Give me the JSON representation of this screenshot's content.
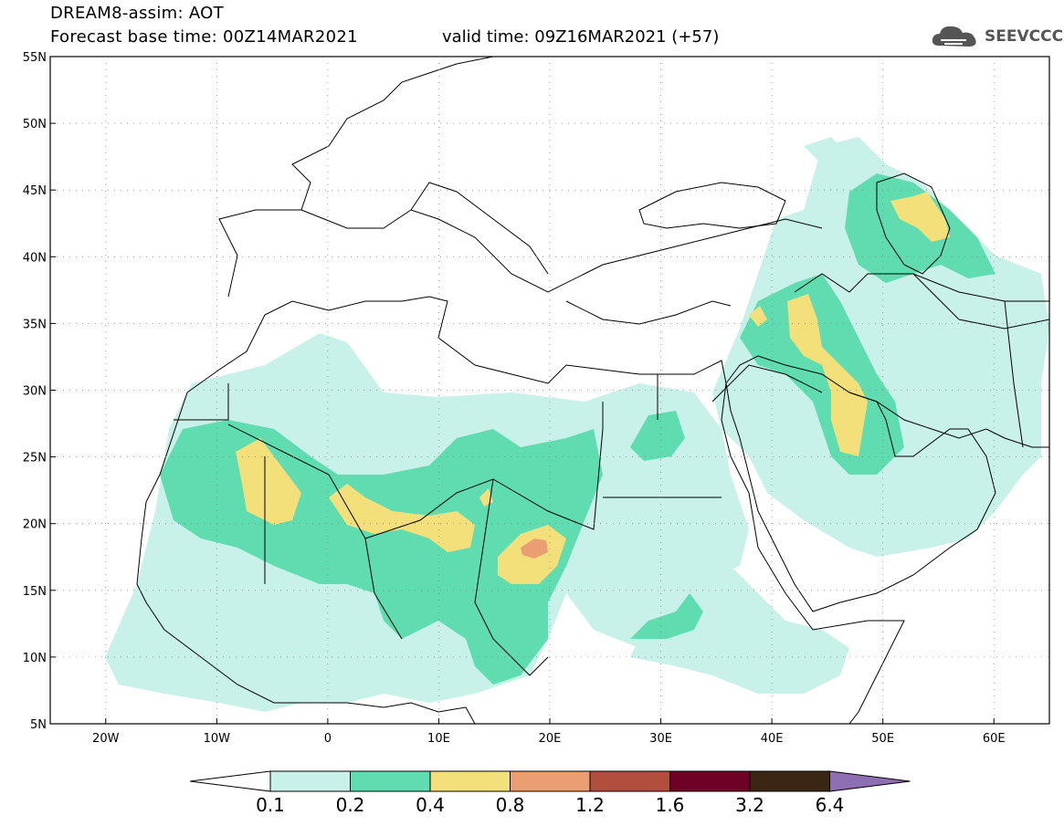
{
  "header": {
    "line1": "DREAM8-assim: AOT",
    "line2": "Forecast base time: 00Z14MAR2021",
    "valid": "valid time: 09Z16MAR2021 (+57)"
  },
  "logo": {
    "text": "SEEVCCC",
    "icon": "cloud-icon"
  },
  "map": {
    "variable": "AOT",
    "lat_labels": [
      "55N",
      "50N",
      "45N",
      "40N",
      "35N",
      "30N",
      "25N",
      "20N",
      "15N",
      "10N",
      "5N"
    ],
    "lon_labels": [
      "20W",
      "10W",
      "0",
      "10E",
      "20E",
      "30E",
      "40E",
      "50E",
      "60E"
    ],
    "extent": {
      "lon": [
        -25,
        65
      ],
      "lat": [
        5,
        55
      ]
    }
  },
  "colorbar": {
    "labels": [
      "0.1",
      "0.2",
      "0.4",
      "0.8",
      "1.2",
      "1.6",
      "3.2",
      "6.4"
    ],
    "colors": [
      "#ffffff",
      "#c8f1e9",
      "#5fdcb0",
      "#f3e07a",
      "#eb9e72",
      "#b14e3e",
      "#6f0026",
      "#3b2614",
      "#8f6fb3"
    ]
  }
}
